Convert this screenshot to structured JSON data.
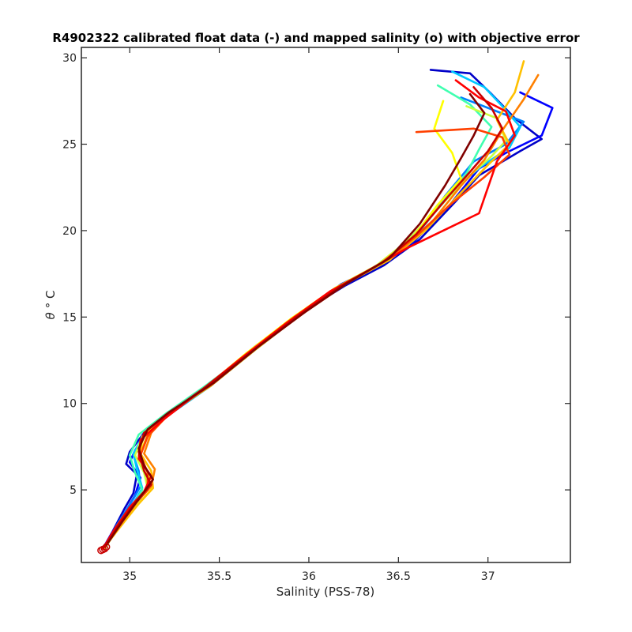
{
  "chart_data": {
    "type": "line",
    "title": "R4902322 calibrated float data (-) and mapped salinity (o) with objective error",
    "xlabel": "Salinity (PSS-78)",
    "ylabel_symbol": "θ",
    "ylabel_unit": "° C",
    "xlim": [
      34.73,
      37.46
    ],
    "ylim": [
      0.8,
      30.6
    ],
    "xticks": [
      35,
      35.5,
      36,
      36.5,
      37
    ],
    "xtick_labels": [
      "35",
      "35.5",
      "36",
      "36.5",
      "37"
    ],
    "yticks": [
      5,
      10,
      15,
      20,
      25,
      30
    ],
    "ytick_labels": [
      "5",
      "10",
      "15",
      "20",
      "25",
      "30"
    ],
    "grid": false,
    "colormap": "jet",
    "series": [
      {
        "color": "#0000c8",
        "points": [
          [
            36.68,
            29.3
          ],
          [
            36.9,
            29.1
          ],
          [
            37.02,
            27.9
          ],
          [
            37.15,
            26.5
          ],
          [
            37.3,
            25.3
          ],
          [
            37.18,
            24.6
          ],
          [
            36.95,
            23.2
          ],
          [
            36.82,
            21.7
          ],
          [
            36.62,
            19.5
          ],
          [
            36.42,
            18.0
          ],
          [
            36.2,
            16.8
          ],
          [
            35.95,
            15.2
          ],
          [
            35.7,
            13.2
          ],
          [
            35.45,
            11.0
          ],
          [
            35.2,
            9.3
          ],
          [
            35.08,
            8.3
          ],
          [
            35.0,
            7.2
          ],
          [
            34.98,
            6.5
          ],
          [
            35.04,
            5.9
          ],
          [
            35.02,
            4.8
          ],
          [
            34.97,
            3.9
          ],
          [
            34.9,
            2.5
          ],
          [
            34.85,
            1.6
          ]
        ]
      },
      {
        "color": "#0000ff",
        "points": [
          [
            37.18,
            28.0
          ],
          [
            37.36,
            27.1
          ],
          [
            37.3,
            25.5
          ],
          [
            37.1,
            24.5
          ],
          [
            36.95,
            23.6
          ],
          [
            36.78,
            21.4
          ],
          [
            36.58,
            19.3
          ],
          [
            36.4,
            18.0
          ],
          [
            36.18,
            16.9
          ],
          [
            35.95,
            15.2
          ],
          [
            35.7,
            13.3
          ],
          [
            35.45,
            11.1
          ],
          [
            35.22,
            9.5
          ],
          [
            35.1,
            8.4
          ],
          [
            35.03,
            7.3
          ],
          [
            35.0,
            6.6
          ],
          [
            35.06,
            5.7
          ],
          [
            35.03,
            4.7
          ],
          [
            34.98,
            3.8
          ],
          [
            34.9,
            2.5
          ],
          [
            34.85,
            1.6
          ]
        ]
      },
      {
        "color": "#0080ff",
        "points": [
          [
            36.85,
            27.7
          ],
          [
            37.05,
            26.9
          ],
          [
            37.2,
            26.3
          ],
          [
            37.1,
            25.0
          ],
          [
            36.92,
            24.0
          ],
          [
            36.76,
            22.0
          ],
          [
            36.6,
            19.8
          ],
          [
            36.42,
            18.2
          ],
          [
            36.15,
            16.6
          ],
          [
            35.9,
            14.8
          ],
          [
            35.65,
            12.8
          ],
          [
            35.4,
            10.8
          ],
          [
            35.18,
            9.1
          ],
          [
            35.07,
            8.1
          ],
          [
            35.02,
            7.0
          ],
          [
            35.05,
            6.1
          ],
          [
            35.06,
            5.2
          ],
          [
            35.01,
            4.3
          ],
          [
            34.93,
            3.0
          ],
          [
            34.86,
            1.7
          ]
        ]
      },
      {
        "color": "#00c8ff",
        "points": [
          [
            36.8,
            29.2
          ],
          [
            36.98,
            28.3
          ],
          [
            37.08,
            27.2
          ],
          [
            37.18,
            26.0
          ],
          [
            37.12,
            24.8
          ],
          [
            36.96,
            23.7
          ],
          [
            36.8,
            22.3
          ],
          [
            36.62,
            20.0
          ],
          [
            36.45,
            18.4
          ],
          [
            36.2,
            16.9
          ],
          [
            35.95,
            15.1
          ],
          [
            35.7,
            13.1
          ],
          [
            35.45,
            11.0
          ],
          [
            35.2,
            9.2
          ],
          [
            35.08,
            8.2
          ],
          [
            35.02,
            7.1
          ],
          [
            35.04,
            6.2
          ],
          [
            35.07,
            5.1
          ],
          [
            35.02,
            4.2
          ],
          [
            34.94,
            3.0
          ],
          [
            34.86,
            1.7
          ]
        ]
      },
      {
        "color": "#40ffb0",
        "points": [
          [
            36.72,
            28.4
          ],
          [
            36.9,
            27.3
          ],
          [
            37.02,
            26.0
          ],
          [
            36.95,
            24.7
          ],
          [
            36.88,
            23.3
          ],
          [
            36.75,
            21.6
          ],
          [
            36.58,
            19.7
          ],
          [
            36.4,
            18.1
          ],
          [
            36.15,
            16.7
          ],
          [
            35.92,
            15.0
          ],
          [
            35.68,
            13.0
          ],
          [
            35.42,
            11.0
          ],
          [
            35.2,
            9.4
          ],
          [
            35.05,
            8.2
          ],
          [
            35.0,
            7.0
          ],
          [
            35.03,
            6.0
          ],
          [
            35.07,
            5.0
          ],
          [
            35.02,
            4.1
          ],
          [
            34.93,
            2.9
          ],
          [
            34.86,
            1.7
          ]
        ]
      },
      {
        "color": "#c8ff40",
        "points": [
          [
            36.88,
            27.2
          ],
          [
            37.05,
            26.5
          ],
          [
            37.1,
            25.2
          ],
          [
            37.02,
            24.3
          ],
          [
            36.9,
            23.2
          ],
          [
            36.72,
            21.3
          ],
          [
            36.55,
            19.4
          ],
          [
            36.38,
            18.0
          ],
          [
            36.15,
            16.6
          ],
          [
            35.9,
            14.9
          ],
          [
            35.66,
            12.9
          ],
          [
            35.42,
            10.9
          ],
          [
            35.2,
            9.2
          ],
          [
            35.07,
            8.1
          ],
          [
            35.03,
            7.0
          ],
          [
            35.08,
            6.0
          ],
          [
            35.1,
            5.1
          ],
          [
            35.04,
            4.2
          ],
          [
            34.94,
            2.9
          ],
          [
            34.86,
            1.6
          ]
        ]
      },
      {
        "color": "#ffff00",
        "points": [
          [
            36.75,
            27.5
          ],
          [
            36.7,
            25.9
          ],
          [
            36.8,
            24.5
          ],
          [
            36.85,
            23.0
          ],
          [
            36.72,
            21.5
          ],
          [
            36.58,
            19.6
          ],
          [
            36.4,
            18.1
          ],
          [
            36.15,
            16.7
          ],
          [
            35.9,
            14.9
          ],
          [
            35.65,
            12.9
          ],
          [
            35.42,
            10.9
          ],
          [
            35.2,
            9.3
          ],
          [
            35.08,
            8.2
          ],
          [
            35.05,
            7.0
          ],
          [
            35.1,
            6.0
          ],
          [
            35.12,
            5.0
          ],
          [
            35.05,
            4.2
          ],
          [
            34.95,
            3.0
          ],
          [
            34.86,
            1.7
          ]
        ]
      },
      {
        "color": "#ffc000",
        "points": [
          [
            37.2,
            29.8
          ],
          [
            37.15,
            28.0
          ],
          [
            37.05,
            26.4
          ],
          [
            37.12,
            25.0
          ],
          [
            37.0,
            23.8
          ],
          [
            36.85,
            22.2
          ],
          [
            36.65,
            20.0
          ],
          [
            36.45,
            18.3
          ],
          [
            36.2,
            16.9
          ],
          [
            35.95,
            15.1
          ],
          [
            35.7,
            13.1
          ],
          [
            35.45,
            11.0
          ],
          [
            35.2,
            9.3
          ],
          [
            35.1,
            8.2
          ],
          [
            35.06,
            7.1
          ],
          [
            35.12,
            6.1
          ],
          [
            35.13,
            5.1
          ],
          [
            35.05,
            4.2
          ],
          [
            34.95,
            2.9
          ],
          [
            34.86,
            1.7
          ]
        ]
      },
      {
        "color": "#ff8000",
        "points": [
          [
            37.28,
            29.0
          ],
          [
            37.2,
            27.6
          ],
          [
            37.08,
            25.8
          ],
          [
            36.98,
            24.1
          ],
          [
            36.85,
            22.6
          ],
          [
            36.68,
            20.4
          ],
          [
            36.48,
            18.6
          ],
          [
            36.22,
            17.0
          ],
          [
            35.98,
            15.3
          ],
          [
            35.72,
            13.3
          ],
          [
            35.46,
            11.1
          ],
          [
            35.22,
            9.4
          ],
          [
            35.12,
            8.3
          ],
          [
            35.08,
            7.1
          ],
          [
            35.14,
            6.2
          ],
          [
            35.12,
            5.2
          ],
          [
            35.04,
            4.3
          ],
          [
            34.95,
            3.0
          ],
          [
            34.86,
            1.7
          ]
        ]
      },
      {
        "color": "#ff4000",
        "points": [
          [
            36.6,
            25.7
          ],
          [
            36.92,
            25.9
          ],
          [
            37.08,
            25.4
          ],
          [
            37.12,
            24.4
          ],
          [
            36.98,
            23.1
          ],
          [
            36.8,
            21.6
          ],
          [
            36.6,
            19.7
          ],
          [
            36.4,
            18.1
          ],
          [
            36.18,
            16.8
          ],
          [
            35.92,
            15.0
          ],
          [
            35.68,
            13.0
          ],
          [
            35.42,
            10.9
          ],
          [
            35.2,
            9.2
          ],
          [
            35.1,
            8.1
          ],
          [
            35.06,
            7.0
          ],
          [
            35.1,
            6.0
          ],
          [
            35.1,
            5.0
          ],
          [
            35.02,
            4.1
          ],
          [
            34.93,
            2.9
          ],
          [
            34.85,
            1.6
          ]
        ]
      },
      {
        "color": "#ff0000",
        "points": [
          [
            36.82,
            28.7
          ],
          [
            36.95,
            27.7
          ],
          [
            37.1,
            26.9
          ],
          [
            37.15,
            25.5
          ],
          [
            37.05,
            24.0
          ],
          [
            37.0,
            22.5
          ],
          [
            36.95,
            21.0
          ],
          [
            36.75,
            20.0
          ],
          [
            36.55,
            19.0
          ],
          [
            36.35,
            17.8
          ],
          [
            36.12,
            16.5
          ],
          [
            35.88,
            14.7
          ],
          [
            35.62,
            12.6
          ],
          [
            35.38,
            10.6
          ],
          [
            35.18,
            9.0
          ],
          [
            35.06,
            7.9
          ],
          [
            35.05,
            6.8
          ],
          [
            35.12,
            5.8
          ],
          [
            35.08,
            4.9
          ],
          [
            35.0,
            4.0
          ],
          [
            34.92,
            2.8
          ],
          [
            34.85,
            1.6
          ]
        ]
      },
      {
        "color": "#c80000",
        "points": [
          [
            36.92,
            28.3
          ],
          [
            37.02,
            27.1
          ],
          [
            37.08,
            25.9
          ],
          [
            37.0,
            24.6
          ],
          [
            36.9,
            23.4
          ],
          [
            36.78,
            22.0
          ],
          [
            36.6,
            19.8
          ],
          [
            36.42,
            18.2
          ],
          [
            36.18,
            16.8
          ],
          [
            35.93,
            15.0
          ],
          [
            35.68,
            13.0
          ],
          [
            35.43,
            11.0
          ],
          [
            35.2,
            9.3
          ],
          [
            35.08,
            8.3
          ],
          [
            35.05,
            7.2
          ],
          [
            35.08,
            6.1
          ],
          [
            35.12,
            5.3
          ],
          [
            35.04,
            4.4
          ],
          [
            34.94,
            3.0
          ],
          [
            34.86,
            1.7
          ]
        ]
      },
      {
        "color": "#800000",
        "points": [
          [
            36.9,
            27.9
          ],
          [
            36.98,
            26.8
          ],
          [
            36.92,
            25.5
          ],
          [
            36.85,
            24.2
          ],
          [
            36.76,
            22.6
          ],
          [
            36.62,
            20.4
          ],
          [
            36.45,
            18.4
          ],
          [
            36.22,
            17.0
          ],
          [
            35.98,
            15.3
          ],
          [
            35.72,
            13.3
          ],
          [
            35.47,
            11.2
          ],
          [
            35.22,
            9.5
          ],
          [
            35.1,
            8.5
          ],
          [
            35.05,
            7.4
          ],
          [
            35.08,
            6.4
          ],
          [
            35.13,
            5.6
          ],
          [
            35.06,
            4.6
          ],
          [
            34.96,
            3.2
          ],
          [
            34.87,
            1.8
          ]
        ]
      }
    ],
    "mapped_points": [
      [
        34.84,
        1.5
      ],
      [
        34.86,
        1.6
      ],
      [
        34.85,
        1.55
      ],
      [
        34.87,
        1.7
      ]
    ],
    "mapped_color": "#c80000"
  }
}
